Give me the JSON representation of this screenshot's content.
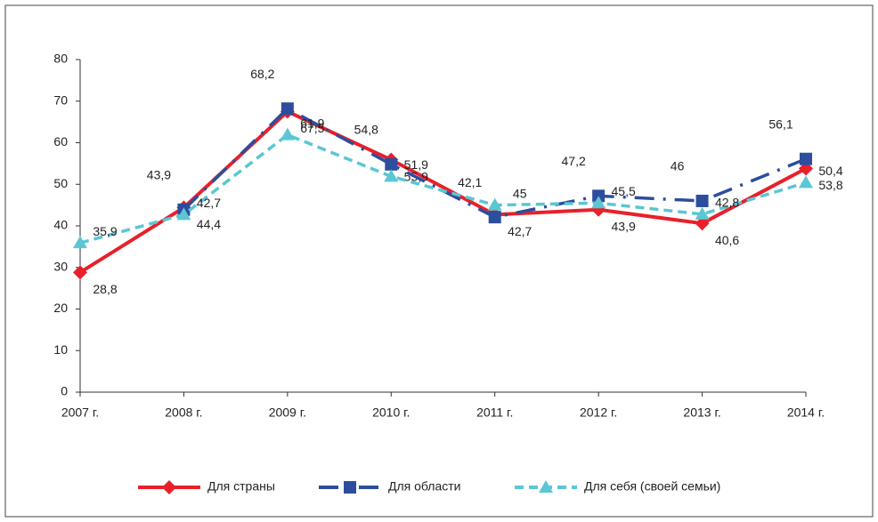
{
  "chart_data": {
    "type": "line",
    "categories": [
      "2007 г.",
      "2008 г.",
      "2009 г.",
      "2010 г.",
      "2011 г.",
      "2012 г.",
      "2013 г.",
      "2014 г."
    ],
    "series": [
      {
        "name": "Для страны",
        "color": "#e8202a",
        "marker": "diamond",
        "dash": "solid",
        "values": [
          28.8,
          44.4,
          67.5,
          55.9,
          42.7,
          43.9,
          40.6,
          53.8
        ],
        "value_labels": [
          "28,8",
          "44,4",
          "67,5",
          "55,9",
          "42,7",
          "43,9",
          "40,6",
          "53,8"
        ]
      },
      {
        "name": "Для области",
        "color": "#2d4e9c",
        "marker": "square",
        "dash": "dashdot",
        "values": [
          null,
          43.9,
          68.2,
          54.8,
          42.1,
          47.2,
          46,
          56.1
        ],
        "value_labels": [
          null,
          "43,9",
          "68,2",
          "54,8",
          "42,1",
          "47,2",
          "46",
          "56,1"
        ]
      },
      {
        "name": "Для себя (своей семьи)",
        "color": "#5bc6d4",
        "marker": "triangle",
        "dash": "dashed",
        "values": [
          35.9,
          42.7,
          61.9,
          51.9,
          45,
          45.5,
          42.8,
          50.4
        ],
        "value_labels": [
          "35,9",
          "42,7",
          "61,9",
          "51,9",
          "45",
          "45,5",
          "42,8",
          "50,4"
        ]
      }
    ],
    "ylim": [
      0,
      80
    ],
    "yticks": [
      0,
      10,
      20,
      30,
      40,
      50,
      60,
      70,
      80
    ],
    "legend": "bottom"
  }
}
